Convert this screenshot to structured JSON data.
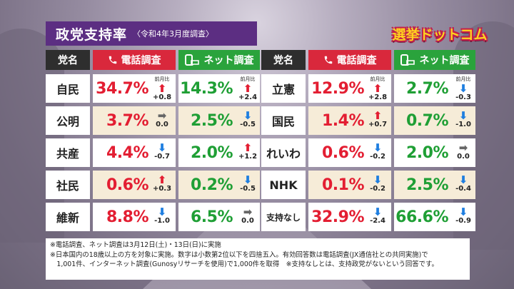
{
  "title": {
    "main": "政党支持率",
    "sub": "〈令和4年3月度調査〉"
  },
  "logo": {
    "text": "選挙ドットコム"
  },
  "headers": {
    "party": "党名",
    "phone": "電話調査",
    "net": "ネット調査"
  },
  "change_label": "前月比",
  "colors": {
    "title_bg": "#5c2e82",
    "phone_header": "#d9283c",
    "net_header": "#2aa33c",
    "pct_red": "#e31e32",
    "pct_green": "#1f9f35",
    "arrow_up": "#e31e32",
    "arrow_down": "#1e7ee0",
    "arrow_flat": "#666666"
  },
  "left_rows": [
    {
      "party": "自民",
      "phone": "34.7%",
      "phone_dir": "up",
      "phone_chg": "+0.8",
      "net": "14.3%",
      "net_dir": "up",
      "net_chg": "+2.4"
    },
    {
      "party": "公明",
      "phone": "3.7%",
      "phone_dir": "flat",
      "phone_chg": "0.0",
      "net": "2.5%",
      "net_dir": "down",
      "net_chg": "-0.5"
    },
    {
      "party": "共産",
      "phone": "4.4%",
      "phone_dir": "down",
      "phone_chg": "-0.7",
      "net": "2.0%",
      "net_dir": "up",
      "net_chg": "+1.2"
    },
    {
      "party": "社民",
      "phone": "0.6%",
      "phone_dir": "up",
      "phone_chg": "+0.3",
      "net": "0.2%",
      "net_dir": "down",
      "net_chg": "-0.5"
    },
    {
      "party": "維新",
      "phone": "8.8%",
      "phone_dir": "down",
      "phone_chg": "-1.0",
      "net": "6.5%",
      "net_dir": "flat",
      "net_chg": "0.0"
    }
  ],
  "right_rows": [
    {
      "party": "立憲",
      "phone": "12.9%",
      "phone_dir": "up",
      "phone_chg": "+2.8",
      "net": "2.7%",
      "net_dir": "down",
      "net_chg": "-0.3"
    },
    {
      "party": "国民",
      "phone": "1.4%",
      "phone_dir": "up",
      "phone_chg": "+0.7",
      "net": "0.7%",
      "net_dir": "down",
      "net_chg": "-1.0"
    },
    {
      "party": "れいわ",
      "phone": "0.6%",
      "phone_dir": "down",
      "phone_chg": "-0.2",
      "net": "2.0%",
      "net_dir": "flat",
      "net_chg": "0.0"
    },
    {
      "party": "NHK",
      "phone": "0.1%",
      "phone_dir": "down",
      "phone_chg": "-0.2",
      "net": "2.5%",
      "net_dir": "down",
      "net_chg": "-0.4"
    },
    {
      "party": "支持なし",
      "phone": "32.9%",
      "phone_dir": "down",
      "phone_chg": "-2.4",
      "net": "66.6%",
      "net_dir": "down",
      "net_chg": "-0.9"
    }
  ],
  "notes": [
    "※電話調査、ネット調査は3月12日(土)・13日(日)に実施",
    "※日本国内の18歳以上の方を対象に実施。数字は小数第2位以下を四捨五入。有効回答数は電話調査(JX通信社との共同実施)で",
    "　1,001件、インターネット調査(Gunosyリサーチを使用)で1,000件を取得　※支持なしとは、支持政党がないという回答です。"
  ]
}
